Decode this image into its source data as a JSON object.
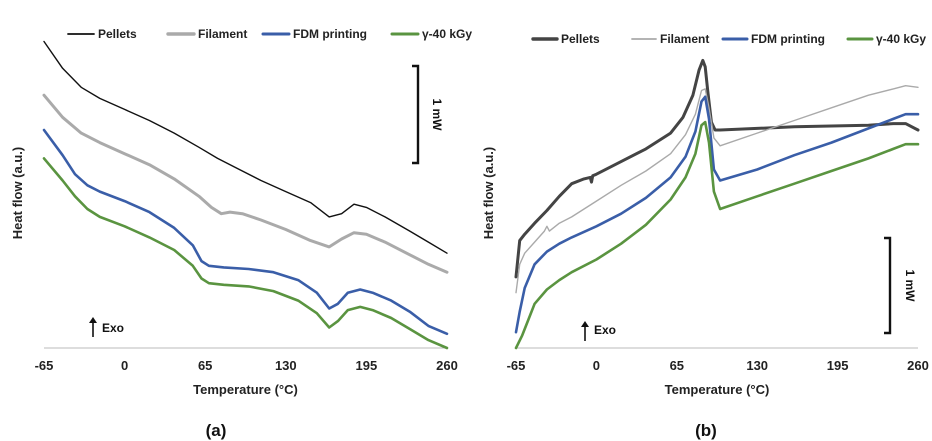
{
  "chart_data": [
    {
      "type": "line",
      "panel_label": "(a)",
      "xlabel": "Temperature (°C)",
      "ylabel": "Heat flow (a.u.)",
      "xlim": [
        -65,
        260
      ],
      "ylim": [
        0,
        20
      ],
      "x_ticks": [
        "-65",
        "0",
        "65",
        "130",
        "195",
        "260"
      ],
      "grid": false,
      "legend": "top",
      "scale_bar": "1 mW",
      "exo_label": "Exo",
      "series": [
        {
          "name": "Pellets",
          "color": "#111111",
          "x": [
            -65,
            -50,
            -35,
            -20,
            0,
            20,
            40,
            60,
            75,
            90,
            110,
            130,
            150,
            165,
            175,
            185,
            195,
            210,
            230,
            245,
            260
          ],
          "y": [
            19.4,
            17.7,
            16.5,
            15.8,
            15.1,
            14.4,
            13.6,
            12.7,
            12.0,
            11.4,
            10.6,
            9.9,
            9.2,
            8.3,
            8.5,
            9.1,
            8.9,
            8.3,
            7.4,
            6.7,
            6.0
          ]
        },
        {
          "name": "Filament",
          "color": "#aaaaaa",
          "x": [
            -65,
            -50,
            -35,
            -20,
            0,
            20,
            40,
            60,
            70,
            78,
            85,
            95,
            110,
            130,
            150,
            165,
            175,
            185,
            195,
            210,
            230,
            245,
            260
          ],
          "y": [
            16.0,
            14.6,
            13.6,
            13.0,
            12.3,
            11.6,
            10.7,
            9.6,
            8.9,
            8.5,
            8.6,
            8.5,
            8.1,
            7.5,
            6.8,
            6.4,
            6.9,
            7.3,
            7.2,
            6.7,
            5.9,
            5.3,
            4.8
          ]
        },
        {
          "name": "FDM printing",
          "color": "#3a5ea8",
          "x": [
            -65,
            -50,
            -40,
            -30,
            -20,
            0,
            20,
            40,
            55,
            62,
            68,
            80,
            100,
            120,
            140,
            155,
            165,
            172,
            180,
            190,
            200,
            215,
            230,
            245,
            260
          ],
          "y": [
            13.8,
            12.2,
            11.0,
            10.3,
            9.9,
            9.3,
            8.6,
            7.6,
            6.5,
            5.5,
            5.2,
            5.1,
            5.0,
            4.8,
            4.3,
            3.5,
            2.5,
            2.8,
            3.5,
            3.7,
            3.5,
            3.0,
            2.3,
            1.4,
            0.9
          ]
        },
        {
          "name": "γ-40 kGy",
          "color": "#5a9440",
          "x": [
            -65,
            -50,
            -40,
            -30,
            -20,
            0,
            20,
            40,
            55,
            62,
            68,
            80,
            100,
            120,
            140,
            155,
            165,
            172,
            180,
            190,
            200,
            215,
            230,
            245,
            260
          ],
          "y": [
            12.0,
            10.6,
            9.6,
            8.8,
            8.3,
            7.7,
            7.0,
            6.2,
            5.2,
            4.4,
            4.1,
            4.0,
            3.9,
            3.6,
            3.0,
            2.2,
            1.3,
            1.7,
            2.4,
            2.6,
            2.4,
            1.9,
            1.2,
            0.5,
            0.0
          ]
        }
      ]
    },
    {
      "type": "line",
      "panel_label": "(b)",
      "xlabel": "Temperature (°C)",
      "ylabel": "Heat flow (a.u.)",
      "xlim": [
        -65,
        260
      ],
      "ylim": [
        0,
        20
      ],
      "x_ticks": [
        "-65",
        "0",
        "65",
        "130",
        "195",
        "260"
      ],
      "grid": false,
      "legend": "top",
      "scale_bar": "1 mW",
      "exo_label": "Exo",
      "series": [
        {
          "name": "Pellets",
          "color": "#444444",
          "x": [
            -65,
            -62,
            -58,
            -50,
            -40,
            -30,
            -20,
            -10,
            -5,
            -4,
            -3,
            0,
            20,
            40,
            60,
            70,
            78,
            83,
            86,
            88,
            90,
            93,
            96,
            100,
            130,
            160,
            190,
            220,
            240,
            250,
            260
          ],
          "y": [
            4.5,
            6.8,
            7.2,
            7.9,
            8.7,
            9.6,
            10.4,
            10.7,
            10.8,
            10.5,
            10.9,
            11.0,
            11.8,
            12.6,
            13.6,
            14.6,
            16.0,
            17.6,
            18.2,
            17.8,
            16.3,
            14.3,
            13.8,
            13.8,
            13.9,
            14.0,
            14.05,
            14.1,
            14.2,
            14.2,
            13.8
          ]
        },
        {
          "name": "Filament",
          "color": "#aaaaaa",
          "x": [
            -65,
            -62,
            -58,
            -50,
            -42,
            -40,
            -38,
            -30,
            -20,
            0,
            20,
            40,
            60,
            72,
            80,
            85,
            88,
            91,
            95,
            100,
            130,
            160,
            190,
            220,
            240,
            250,
            260
          ],
          "y": [
            3.5,
            5.3,
            6.0,
            6.7,
            7.4,
            7.7,
            7.4,
            7.9,
            8.3,
            9.3,
            10.3,
            11.2,
            12.3,
            13.5,
            14.8,
            16.3,
            16.4,
            15.2,
            13.3,
            12.8,
            13.6,
            14.4,
            15.2,
            16.0,
            16.4,
            16.6,
            16.5
          ]
        },
        {
          "name": "FDM printing",
          "color": "#3a5ea8",
          "x": [
            -65,
            -62,
            -58,
            -50,
            -40,
            -30,
            -20,
            0,
            20,
            40,
            60,
            72,
            80,
            85,
            88,
            91,
            95,
            100,
            130,
            160,
            190,
            220,
            240,
            250,
            260
          ],
          "y": [
            1.0,
            2.3,
            3.8,
            5.3,
            6.1,
            6.6,
            7.0,
            7.7,
            8.5,
            9.5,
            10.8,
            12.1,
            13.7,
            15.6,
            15.9,
            14.5,
            11.3,
            10.6,
            11.3,
            12.2,
            13.0,
            13.9,
            14.5,
            14.8,
            14.8
          ]
        },
        {
          "name": "γ-40 kGy",
          "color": "#5a9440",
          "x": [
            -65,
            -60,
            -55,
            -50,
            -40,
            -30,
            -20,
            0,
            20,
            40,
            60,
            72,
            80,
            85,
            88,
            91,
            95,
            100,
            130,
            160,
            190,
            220,
            240,
            250,
            260
          ],
          "y": [
            0.0,
            0.8,
            1.8,
            2.8,
            3.7,
            4.3,
            4.8,
            5.6,
            6.6,
            7.8,
            9.4,
            10.8,
            12.3,
            14.1,
            14.3,
            13.0,
            9.9,
            8.8,
            9.6,
            10.4,
            11.2,
            12.0,
            12.6,
            12.9,
            12.9
          ]
        }
      ]
    }
  ]
}
